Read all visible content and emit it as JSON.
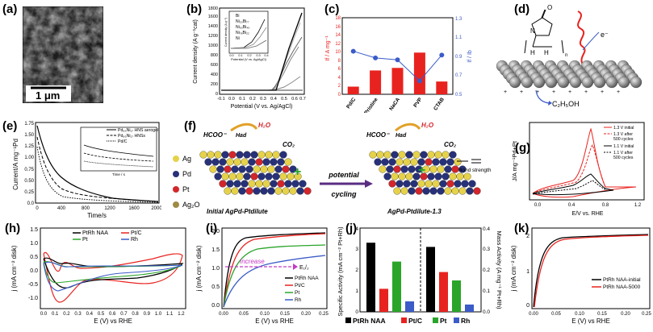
{
  "panels": {
    "a": {
      "label": "(a)",
      "scalebar": "1 μm"
    },
    "b": {
      "label": "(b)",
      "ylabel": "Current density (A g⁻¹cat)",
      "xlabel": "Potential (V vs. Ag/AgCl)",
      "yticks": [
        "0",
        "200",
        "400",
        "600",
        "800",
        "1000",
        "1200",
        "1400",
        "1600",
        "1800"
      ],
      "xticks": [
        "-0.1",
        "0.0",
        "0.1",
        "0.2",
        "0.3",
        "0.4",
        "0.5",
        "0.6",
        "0.7"
      ],
      "legend": [
        "Bi",
        "Ni₂₀Bi₇₇",
        "Ni₅₀Bi₄₅",
        "Ni₇₈Bi₂₂",
        "Ni"
      ],
      "inset_ylabel": "Current density (A g⁻¹)",
      "inset_xlabel": "Potential (V vs. Ag/AgCl)",
      "inset_xticks": [
        "0.0",
        "0.1",
        "0.2",
        "0.3",
        "0.4"
      ]
    },
    "c": {
      "label": "(c)",
      "ylabel_left": "If / A mg⁻¹",
      "ylabel_right": "If / Ib",
      "categories": [
        "Pd/C",
        "Pristine",
        "NaCA",
        "PVP",
        "CTAB"
      ],
      "yticks_left": [
        "0",
        "2",
        "4",
        "6",
        "8",
        "10",
        "12",
        "14",
        "16",
        "18"
      ],
      "yticks_right": [
        "0.5",
        "0.7",
        "0.9",
        "1.1",
        "1.3"
      ]
    },
    "d": {
      "label": "(d)",
      "electron": "e⁻",
      "product": "C₂H₅OH",
      "n": "n",
      "O": "O",
      "N": "N",
      "H": "H"
    },
    "e": {
      "label": "(e)",
      "ylabel": "Current/A mg⁻¹Pd",
      "xlabel": "Time/s",
      "yticks": [
        "0.0",
        "0.25",
        "0.50",
        "0.75",
        "1.00",
        "1.25",
        "1.50",
        "1.75"
      ],
      "xticks": [
        "0",
        "400",
        "800",
        "1200",
        "1600",
        "2000"
      ],
      "legend": [
        "Pd₈₃Ni₁₇ HNS aerogel",
        "Pd₈₃Ni₁₇ HNSs",
        "Pd/C"
      ],
      "inset_xlabel": "Time / s"
    },
    "f": {
      "label": "(f)",
      "legend": [
        "Ag",
        "Pd",
        "Pt",
        "Ag₂O"
      ],
      "hcoo": "HCOO⁻",
      "had": "Had",
      "h2o": "H₂O",
      "co2": "CO₂",
      "left_caption": "Initial AgPd-Ptdilute",
      "right_caption": "AgPd-Ptdilute-1.3",
      "arrow_top": "potential",
      "arrow_bottom": "cycling",
      "bond": "Bond strength"
    },
    "g": {
      "label": "(g)",
      "ylabel": "J/A mg⁻¹Pd+Pt",
      "xlabel": "E/V vs. RHE",
      "xticks": [
        "0.0",
        "0.4",
        "0.8",
        "1.2"
      ],
      "legend": [
        "1.3 V initial",
        "1.3 V after",
        "500 cycles",
        "1.1 V initial",
        "1.1 V after",
        "500 cycles"
      ]
    },
    "h": {
      "label": "(h)",
      "ylabel": "j (mA cm⁻² disk)",
      "xlabel": "E (V) vs RHE",
      "yticks": [
        "1.5",
        "1.0",
        "0.5",
        "0.0",
        "-0.5",
        "-1.0"
      ],
      "xticks": [
        "0.0",
        "0.1",
        "0.2",
        "0.3",
        "0.4",
        "0.5",
        "0.6",
        "0.7",
        "0.8",
        "0.9",
        "1.0",
        "1.1",
        "1.2"
      ],
      "legend": [
        "PtRh NAA",
        "Pt/C",
        "Pt",
        "Rh"
      ]
    },
    "i": {
      "label": "(i)",
      "ylabel": "j (mA cm⁻² disk)",
      "xlabel": "E (V) vs RHE",
      "yticks": [
        "2.0",
        "1.5",
        "1.0",
        "0.5",
        "0.0"
      ],
      "xticks": [
        "0.00",
        "0.05",
        "0.10",
        "0.15",
        "0.20",
        "0.25"
      ],
      "increase": "Increase",
      "e12": "E₁/₂",
      "legend": [
        "PtRh NAA",
        "Pt/C",
        "Pt",
        "Rh"
      ]
    },
    "j": {
      "label": "(j)",
      "ylabel_left": "Specific Activity (mA cm⁻² Pt+Rh)",
      "ylabel_right": "Mass Activity (A mg⁻¹ Pt+Rh)",
      "yticks_left": [
        "0",
        "1",
        "2",
        "3",
        "4"
      ],
      "yticks_right": [
        "0.0",
        "0.1",
        "0.2",
        "0.3",
        "0.4"
      ],
      "legend": [
        "PtRh NAA",
        "Pt/C",
        "Pt",
        "Rh"
      ],
      "specific": [
        3.3,
        1.1,
        2.4,
        0.5
      ],
      "mass": [
        0.31,
        0.19,
        0.15,
        0.035
      ]
    },
    "k": {
      "label": "(k)",
      "ylabel": "j (mA cm⁻² disk)",
      "xlabel": "E (V) vs RHE",
      "yticks": [
        "2",
        "1",
        "0"
      ],
      "xticks": [
        "0.00",
        "0.05",
        "0.10",
        "0.15",
        "0.20",
        "0.25"
      ],
      "legend": [
        "PtRh NAA-initial",
        "PtRh NAA-5000"
      ]
    }
  },
  "colors": {
    "red": "#e8231f",
    "blue": "#3b5bc8",
    "green": "#2aa52a",
    "black": "#000000",
    "darkred": "#b01010",
    "gray": "#888888"
  },
  "chart_data": [
    {
      "type": "bar",
      "panel": "c",
      "categories": [
        "Pd/C",
        "Pristine",
        "NaCA",
        "PVP",
        "CTAB"
      ],
      "series": [
        {
          "values": [
            1.8,
            5.6,
            6.2,
            9.8,
            3.0
          ]
        },
        {
          "values": [
            0.95,
            0.88,
            0.86,
            0.64,
            0.91
          ]
        }
      ],
      "ylim": [
        0,
        18
      ],
      "ylim_right": [
        0.5,
        1.3
      ]
    },
    {
      "type": "bar",
      "panel": "j",
      "categories": [
        "PtRh NAA",
        "Pt/C",
        "Pt",
        "Rh"
      ],
      "series": [
        {
          "values": [
            3.3,
            1.1,
            2.4,
            0.5
          ]
        },
        {
          "values": [
            0.31,
            0.19,
            0.15,
            0.035
          ]
        }
      ],
      "ylim": [
        0,
        4
      ],
      "ylim_right": [
        0,
        0.4
      ]
    }
  ]
}
